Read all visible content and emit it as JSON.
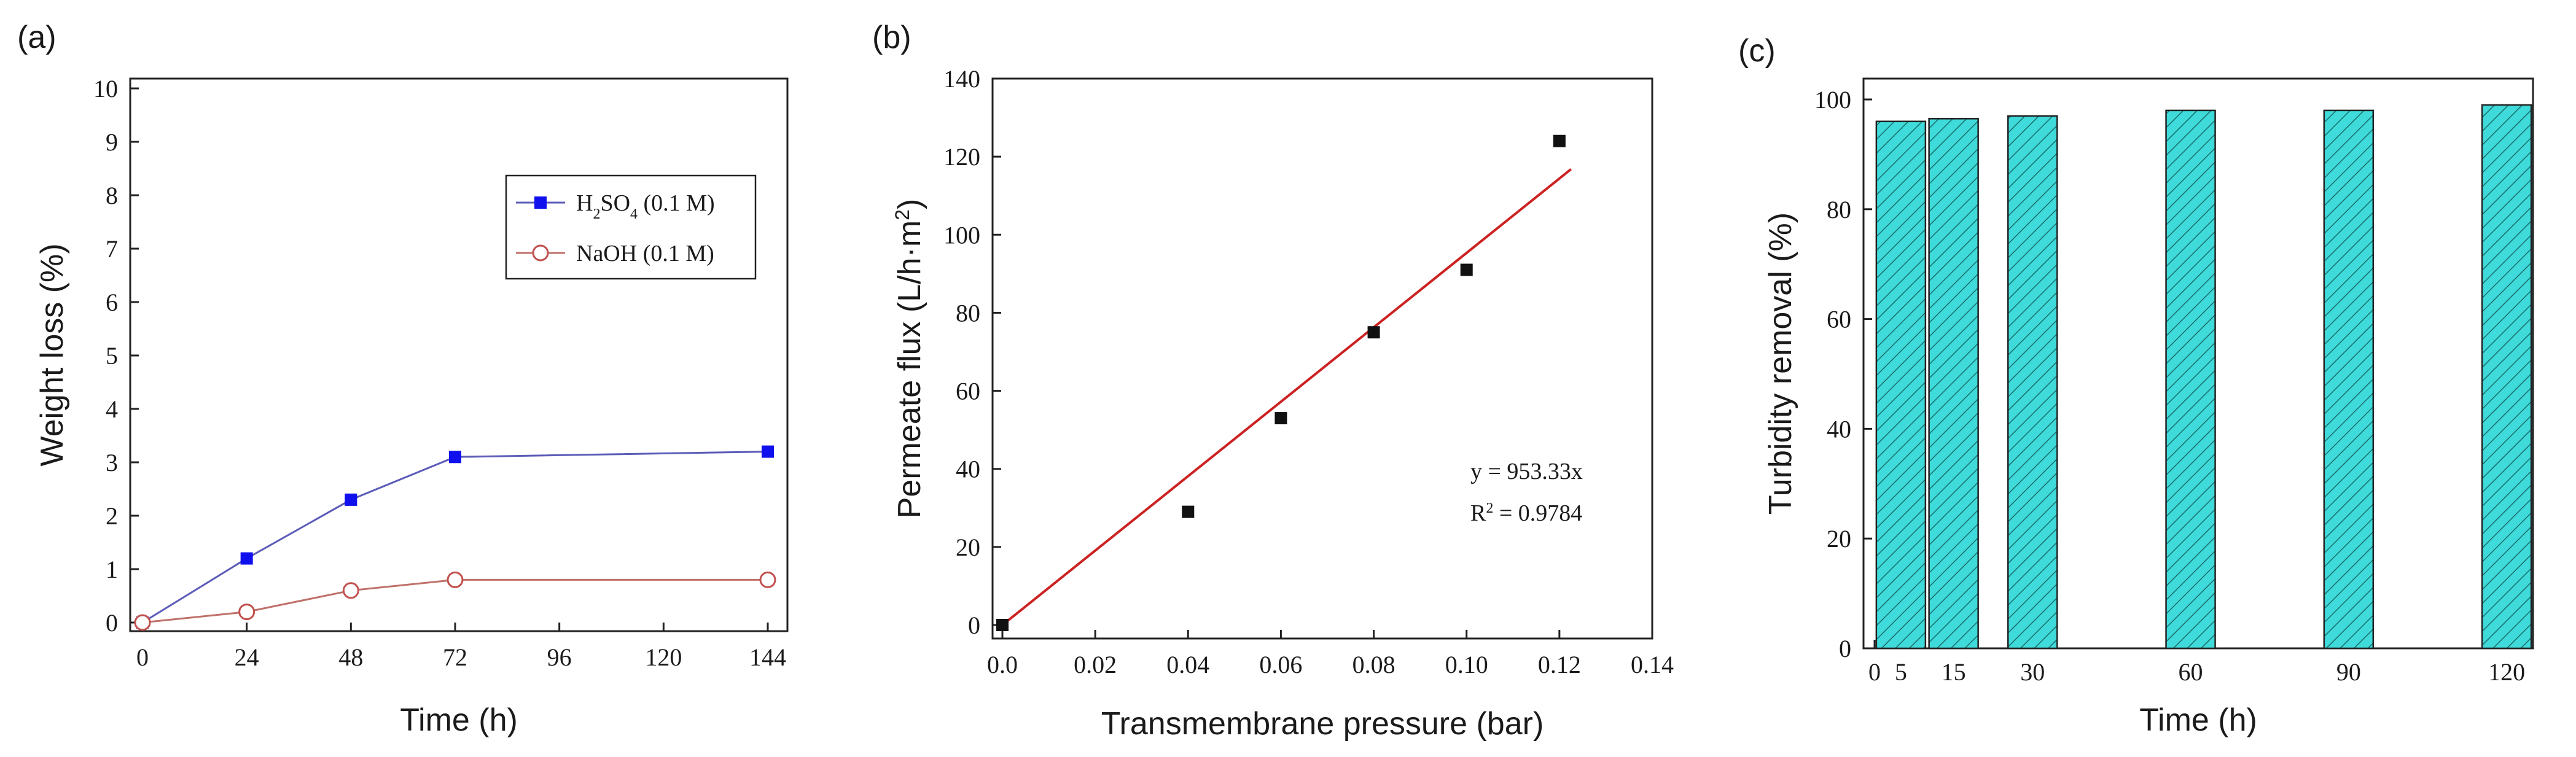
{
  "panels": {
    "a": {
      "label": "(a)"
    },
    "b": {
      "label": "(b)"
    },
    "c": {
      "label": "(c)"
    }
  },
  "chart_data": [
    {
      "id": "a",
      "type": "line",
      "title": "",
      "xlabel": "Time (h)",
      "ylabel": "Weight loss (%)",
      "xlim": [
        0,
        150
      ],
      "ylim": [
        0,
        10
      ],
      "xticks": [
        0,
        24,
        48,
        72,
        96,
        120,
        144
      ],
      "yticks": [
        0,
        1,
        2,
        3,
        4,
        5,
        6,
        7,
        8,
        9,
        10
      ],
      "legend_position": "top-right",
      "series": [
        {
          "name": "H2SO4 (0.1 M)",
          "legend_parts": [
            "H",
            "2",
            "SO",
            "4",
            " (0.1 M)"
          ],
          "color": "#5c5cb8",
          "marker_color": "#1010ee",
          "marker": "filled-square",
          "x": [
            0,
            24,
            48,
            72,
            144
          ],
          "y": [
            0,
            1.2,
            2.3,
            3.1,
            3.2
          ]
        },
        {
          "name": "NaOH (0.1 M)",
          "legend_parts": [
            "NaOH (0.1 M)"
          ],
          "color": "#c0706a",
          "marker_color": "#c0504d",
          "marker": "open-circle",
          "x": [
            0,
            24,
            48,
            72,
            144
          ],
          "y": [
            0,
            0.2,
            0.6,
            0.8,
            0.8
          ]
        }
      ]
    },
    {
      "id": "b",
      "type": "scatter",
      "title": "",
      "xlabel": "Transmembrane pressure (bar)",
      "ylabel": "Permeate flux (L/h·m²)",
      "ylabel_parts": [
        "Permeate flux (L/h·m",
        "2",
        ")"
      ],
      "xlim": [
        0,
        0.14
      ],
      "ylim": [
        0,
        140
      ],
      "xticks": [
        "0.0",
        "0.02",
        "0.04",
        "0.06",
        "0.08",
        "0.10",
        "0.12",
        "0.14"
      ],
      "xtick_values": [
        0,
        0.02,
        0.04,
        0.06,
        0.08,
        0.1,
        0.12,
        0.14
      ],
      "yticks": [
        0,
        20,
        40,
        60,
        80,
        100,
        120,
        140
      ],
      "series": [
        {
          "name": "Permeate flux",
          "marker": "filled-square",
          "marker_color": "#111111",
          "x": [
            0,
            0.04,
            0.06,
            0.08,
            0.1,
            0.12
          ],
          "y": [
            0,
            29,
            53,
            75,
            91,
            124
          ]
        }
      ],
      "fit": {
        "color": "#cc2222",
        "slope": 953.33,
        "x_range": [
          0,
          0.1225
        ],
        "equation": "y = 953.33x",
        "r2_parts": [
          "R",
          "2",
          " = 0.9784"
        ]
      }
    },
    {
      "id": "c",
      "type": "bar",
      "title": "",
      "xlabel": "Time (h)",
      "ylabel": "Turbidity  removal (%)",
      "xlim": [
        0,
        125
      ],
      "ylim": [
        0,
        100
      ],
      "xticks": [
        0,
        5,
        15,
        30,
        60,
        90,
        120
      ],
      "yticks": [
        0,
        20,
        40,
        60,
        80,
        100
      ],
      "bar_fill": "#3fdada",
      "hatch": "diagonal",
      "categories": [
        "5",
        "15",
        "30",
        "60",
        "90",
        "120"
      ],
      "x": [
        5,
        15,
        30,
        60,
        90,
        120
      ],
      "values": [
        96,
        96.5,
        97,
        98,
        98,
        99
      ]
    }
  ]
}
